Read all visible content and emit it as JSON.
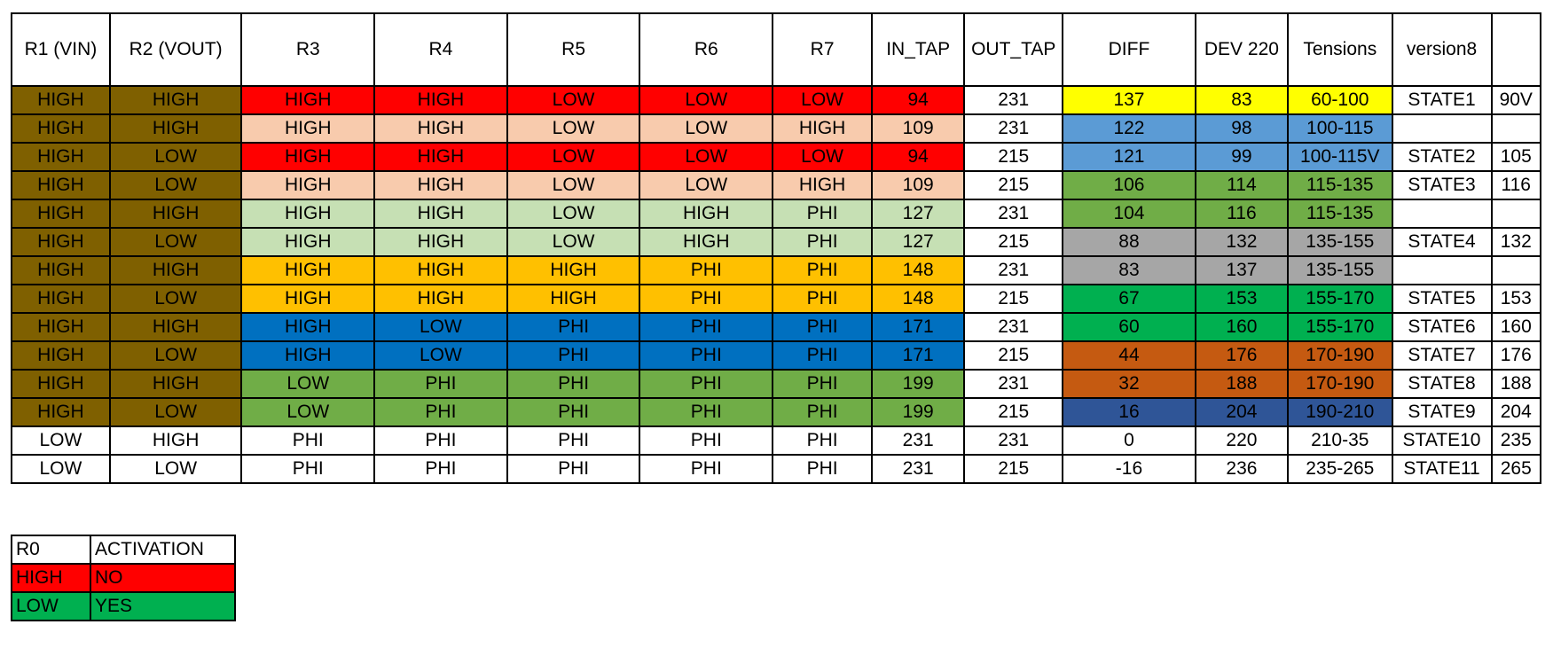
{
  "headers": [
    "R1 (VIN)",
    "R2 (VOUT)",
    "R3",
    "R4",
    "R5",
    "R6",
    "R7",
    "IN_TAP",
    "OUT_TAP",
    "DIFF",
    "DEV 220",
    "Tensions",
    "version8",
    ""
  ],
  "rows": [
    {
      "cells": [
        "HIGH",
        "HIGH",
        "HIGH",
        "HIGH",
        "LOW",
        "LOW",
        "LOW",
        "94",
        "231",
        "137",
        "83",
        "60-100",
        "STATE1",
        "90V"
      ],
      "colors": [
        "#7f6000",
        "#7f6000",
        "#ff0000",
        "#ff0000",
        "#ff0000",
        "#ff0000",
        "#ff0000",
        "#ff0000",
        "#ffffff",
        "#ffff00",
        "#ffff00",
        "#ffff00",
        "#ffffff",
        "#ffffff"
      ]
    },
    {
      "cells": [
        "HIGH",
        "HIGH",
        "HIGH",
        "HIGH",
        "LOW",
        "LOW",
        "HIGH",
        "109",
        "231",
        "122",
        "98",
        "100-115",
        "",
        ""
      ],
      "colors": [
        "#7f6000",
        "#7f6000",
        "#f8cbad",
        "#f8cbad",
        "#f8cbad",
        "#f8cbad",
        "#f8cbad",
        "#f8cbad",
        "#ffffff",
        "#5b9bd5",
        "#5b9bd5",
        "#5b9bd5",
        "#ffffff",
        "#ffffff"
      ]
    },
    {
      "cells": [
        "HIGH",
        "LOW",
        "HIGH",
        "HIGH",
        "LOW",
        "LOW",
        "LOW",
        "94",
        "215",
        "121",
        "99",
        "100-115V",
        "STATE2",
        "105"
      ],
      "colors": [
        "#7f6000",
        "#7f6000",
        "#ff0000",
        "#ff0000",
        "#ff0000",
        "#ff0000",
        "#ff0000",
        "#ff0000",
        "#ffffff",
        "#5b9bd5",
        "#5b9bd5",
        "#5b9bd5",
        "#ffffff",
        "#ffffff"
      ]
    },
    {
      "cells": [
        "HIGH",
        "LOW",
        "HIGH",
        "HIGH",
        "LOW",
        "LOW",
        "HIGH",
        "109",
        "215",
        "106",
        "114",
        "115-135",
        "STATE3",
        "116"
      ],
      "colors": [
        "#7f6000",
        "#7f6000",
        "#f8cbad",
        "#f8cbad",
        "#f8cbad",
        "#f8cbad",
        "#f8cbad",
        "#f8cbad",
        "#ffffff",
        "#70ad47",
        "#70ad47",
        "#70ad47",
        "#ffffff",
        "#ffffff"
      ]
    },
    {
      "cells": [
        "HIGH",
        "HIGH",
        "HIGH",
        "HIGH",
        "LOW",
        "HIGH",
        "PHI",
        "127",
        "231",
        "104",
        "116",
        "115-135",
        "",
        ""
      ],
      "colors": [
        "#7f6000",
        "#7f6000",
        "#c6e0b4",
        "#c6e0b4",
        "#c6e0b4",
        "#c6e0b4",
        "#c6e0b4",
        "#c6e0b4",
        "#ffffff",
        "#70ad47",
        "#70ad47",
        "#70ad47",
        "#ffffff",
        "#ffffff"
      ]
    },
    {
      "cells": [
        "HIGH",
        "LOW",
        "HIGH",
        "HIGH",
        "LOW",
        "HIGH",
        "PHI",
        "127",
        "215",
        "88",
        "132",
        "135-155",
        "STATE4",
        "132"
      ],
      "colors": [
        "#7f6000",
        "#7f6000",
        "#c6e0b4",
        "#c6e0b4",
        "#c6e0b4",
        "#c6e0b4",
        "#c6e0b4",
        "#c6e0b4",
        "#ffffff",
        "#a6a6a6",
        "#a6a6a6",
        "#a6a6a6",
        "#ffffff",
        "#ffffff"
      ]
    },
    {
      "cells": [
        "HIGH",
        "HIGH",
        "HIGH",
        "HIGH",
        "HIGH",
        "PHI",
        "PHI",
        "148",
        "231",
        "83",
        "137",
        "135-155",
        "",
        ""
      ],
      "colors": [
        "#7f6000",
        "#7f6000",
        "#ffc000",
        "#ffc000",
        "#ffc000",
        "#ffc000",
        "#ffc000",
        "#ffc000",
        "#ffffff",
        "#a6a6a6",
        "#a6a6a6",
        "#a6a6a6",
        "#ffffff",
        "#ffffff"
      ]
    },
    {
      "cells": [
        "HIGH",
        "LOW",
        "HIGH",
        "HIGH",
        "HIGH",
        "PHI",
        "PHI",
        "148",
        "215",
        "67",
        "153",
        "155-170",
        "STATE5",
        "153"
      ],
      "colors": [
        "#7f6000",
        "#7f6000",
        "#ffc000",
        "#ffc000",
        "#ffc000",
        "#ffc000",
        "#ffc000",
        "#ffc000",
        "#ffffff",
        "#00b050",
        "#00b050",
        "#00b050",
        "#ffffff",
        "#ffffff"
      ]
    },
    {
      "cells": [
        "HIGH",
        "HIGH",
        "HIGH",
        "LOW",
        "PHI",
        "PHI",
        "PHI",
        "171",
        "231",
        "60",
        "160",
        "155-170",
        "STATE6",
        "160"
      ],
      "colors": [
        "#7f6000",
        "#7f6000",
        "#0070c0",
        "#0070c0",
        "#0070c0",
        "#0070c0",
        "#0070c0",
        "#0070c0",
        "#ffffff",
        "#00b050",
        "#00b050",
        "#00b050",
        "#ffffff",
        "#ffffff"
      ]
    },
    {
      "cells": [
        "HIGH",
        "LOW",
        "HIGH",
        "LOW",
        "PHI",
        "PHI",
        "PHI",
        "171",
        "215",
        "44",
        "176",
        "170-190",
        "STATE7",
        "176"
      ],
      "colors": [
        "#7f6000",
        "#7f6000",
        "#0070c0",
        "#0070c0",
        "#0070c0",
        "#0070c0",
        "#0070c0",
        "#0070c0",
        "#ffffff",
        "#c55a11",
        "#c55a11",
        "#c55a11",
        "#ffffff",
        "#ffffff"
      ]
    },
    {
      "cells": [
        "HIGH",
        "HIGH",
        "LOW",
        "PHI",
        "PHI",
        "PHI",
        "PHI",
        "199",
        "231",
        "32",
        "188",
        "170-190",
        "STATE8",
        "188"
      ],
      "colors": [
        "#7f6000",
        "#7f6000",
        "#70ad47",
        "#70ad47",
        "#70ad47",
        "#70ad47",
        "#70ad47",
        "#70ad47",
        "#ffffff",
        "#c55a11",
        "#c55a11",
        "#c55a11",
        "#ffffff",
        "#ffffff"
      ]
    },
    {
      "cells": [
        "HIGH",
        "LOW",
        "LOW",
        "PHI",
        "PHI",
        "PHI",
        "PHI",
        "199",
        "215",
        "16",
        "204",
        "190-210",
        "STATE9",
        "204"
      ],
      "colors": [
        "#7f6000",
        "#7f6000",
        "#70ad47",
        "#70ad47",
        "#70ad47",
        "#70ad47",
        "#70ad47",
        "#70ad47",
        "#ffffff",
        "#2f5597",
        "#2f5597",
        "#2f5597",
        "#ffffff",
        "#ffffff"
      ]
    },
    {
      "cells": [
        "LOW",
        "HIGH",
        "PHI",
        "PHI",
        "PHI",
        "PHI",
        "PHI",
        "231",
        "231",
        "0",
        "220",
        "210-35",
        "STATE10",
        "235"
      ],
      "colors": [
        "#ffffff",
        "#ffffff",
        "#ffffff",
        "#ffffff",
        "#ffffff",
        "#ffffff",
        "#ffffff",
        "#ffffff",
        "#ffffff",
        "#ffffff",
        "#ffffff",
        "#ffffff",
        "#ffffff",
        "#ffffff"
      ]
    },
    {
      "cells": [
        "LOW",
        "LOW",
        "PHI",
        "PHI",
        "PHI",
        "PHI",
        "PHI",
        "231",
        "215",
        "-16",
        "236",
        "235-265",
        "STATE11",
        "265"
      ],
      "colors": [
        "#ffffff",
        "#ffffff",
        "#ffffff",
        "#ffffff",
        "#ffffff",
        "#ffffff",
        "#ffffff",
        "#ffffff",
        "#ffffff",
        "#ffffff",
        "#ffffff",
        "#ffffff",
        "#ffffff",
        "#ffffff"
      ]
    }
  ],
  "legend": {
    "headers": [
      "R0",
      "ACTIVATION"
    ],
    "rows": [
      {
        "cells": [
          "HIGH",
          "NO"
        ],
        "color": "#ff0000"
      },
      {
        "cells": [
          "LOW",
          "YES"
        ],
        "color": "#00b050"
      }
    ]
  }
}
